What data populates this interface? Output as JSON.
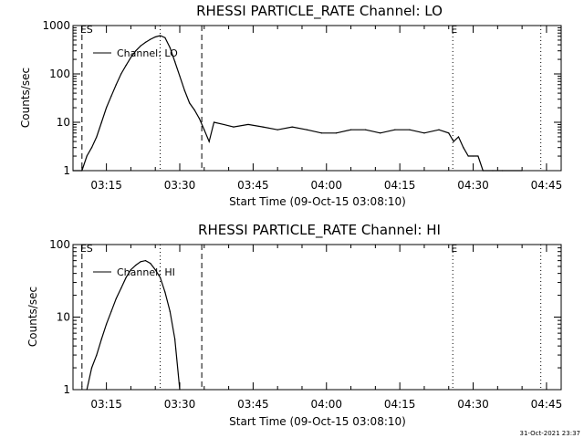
{
  "footer": {
    "timestamp": "31-Oct-2021 23:37"
  },
  "chart_data": [
    {
      "type": "line",
      "title": "RHESSI PARTICLE_RATE Channel: LO",
      "xlabel": "Start Time (09-Oct-15 03:08:10)",
      "ylabel": "Counts/sec",
      "yscale": "log",
      "xlim": [
        "03:08:10",
        "04:48:00"
      ],
      "ylim": [
        1,
        1000
      ],
      "x_ticks": [
        "03:15",
        "03:30",
        "03:45",
        "04:00",
        "04:15",
        "04:30",
        "04:45"
      ],
      "y_ticks": [
        "1",
        "10",
        "100",
        "1000"
      ],
      "legend": "top-left",
      "series": [
        {
          "name": "Channel: LO",
          "color": "#000000",
          "points": [
            [
              "03:08:10",
              1
            ],
            [
              "03:10:00",
              1
            ],
            [
              "03:11:00",
              2
            ],
            [
              "03:12:00",
              3
            ],
            [
              "03:13:00",
              5
            ],
            [
              "03:14:00",
              10
            ],
            [
              "03:15:00",
              20
            ],
            [
              "03:16:00",
              35
            ],
            [
              "03:17:00",
              60
            ],
            [
              "03:18:00",
              100
            ],
            [
              "03:19:00",
              150
            ],
            [
              "03:20:00",
              220
            ],
            [
              "03:21:00",
              300
            ],
            [
              "03:22:00",
              380
            ],
            [
              "03:23:00",
              450
            ],
            [
              "03:24:00",
              520
            ],
            [
              "03:25:00",
              580
            ],
            [
              "03:26:00",
              620
            ],
            [
              "03:27:00",
              560
            ],
            [
              "03:28:00",
              350
            ],
            [
              "03:29:00",
              180
            ],
            [
              "03:30:00",
              90
            ],
            [
              "03:31:00",
              45
            ],
            [
              "03:32:00",
              25
            ],
            [
              "03:33:00",
              18
            ],
            [
              "03:34:00",
              12
            ],
            [
              "03:35:00",
              7
            ],
            [
              "03:36:00",
              4
            ],
            [
              "03:37:00",
              10
            ],
            [
              "03:39:00",
              9
            ],
            [
              "03:41:00",
              8
            ],
            [
              "03:44:00",
              9
            ],
            [
              "03:47:00",
              8
            ],
            [
              "03:50:00",
              7
            ],
            [
              "03:53:00",
              8
            ],
            [
              "03:56:00",
              7
            ],
            [
              "03:59:00",
              6
            ],
            [
              "04:02:00",
              6
            ],
            [
              "04:05:00",
              7
            ],
            [
              "04:08:00",
              7
            ],
            [
              "04:11:00",
              6
            ],
            [
              "04:14:00",
              7
            ],
            [
              "04:17:00",
              7
            ],
            [
              "04:20:00",
              6
            ],
            [
              "04:23:00",
              7
            ],
            [
              "04:25:00",
              6
            ],
            [
              "04:26:00",
              4
            ],
            [
              "04:27:00",
              5
            ],
            [
              "04:28:00",
              3
            ],
            [
              "04:29:00",
              2
            ],
            [
              "04:30:00",
              2
            ],
            [
              "04:31:00",
              2
            ],
            [
              "04:32:00",
              1
            ],
            [
              "04:34:00",
              1
            ],
            [
              "04:36:00",
              1
            ],
            [
              "04:40:00",
              1
            ]
          ]
        }
      ],
      "markers": [
        {
          "time": "03:10:00",
          "label": "ES",
          "style": "dashed"
        },
        {
          "time": "03:26:00",
          "label": "",
          "style": "dotted"
        },
        {
          "time": "03:34:30",
          "label": "",
          "style": "dashed"
        },
        {
          "time": "04:25:50",
          "label": "E",
          "style": "dotted"
        },
        {
          "time": "04:43:50",
          "label": "",
          "style": "dotted"
        }
      ]
    },
    {
      "type": "line",
      "title": "RHESSI PARTICLE_RATE Channel: HI",
      "xlabel": "Start Time (09-Oct-15 03:08:10)",
      "ylabel": "Counts/sec",
      "yscale": "log",
      "xlim": [
        "03:08:10",
        "04:48:00"
      ],
      "ylim": [
        1,
        100
      ],
      "x_ticks": [
        "03:15",
        "03:30",
        "03:45",
        "04:00",
        "04:15",
        "04:30",
        "04:45"
      ],
      "y_ticks": [
        "1",
        "10",
        "100"
      ],
      "legend": "top-left",
      "series": [
        {
          "name": "Channel: HI",
          "color": "#000000",
          "points": [
            [
              "03:11:00",
              1
            ],
            [
              "03:12:00",
              2
            ],
            [
              "03:13:00",
              3
            ],
            [
              "03:14:00",
              5
            ],
            [
              "03:15:00",
              8
            ],
            [
              "03:16:00",
              12
            ],
            [
              "03:17:00",
              18
            ],
            [
              "03:18:00",
              25
            ],
            [
              "03:19:00",
              35
            ],
            [
              "03:20:00",
              45
            ],
            [
              "03:21:00",
              52
            ],
            [
              "03:22:00",
              58
            ],
            [
              "03:23:00",
              60
            ],
            [
              "03:24:00",
              55
            ],
            [
              "03:25:00",
              45
            ],
            [
              "03:26:00",
              35
            ],
            [
              "03:27:00",
              22
            ],
            [
              "03:28:00",
              12
            ],
            [
              "03:29:00",
              5
            ],
            [
              "03:30:00",
              1
            ]
          ]
        }
      ],
      "markers": [
        {
          "time": "03:10:00",
          "label": "ES",
          "style": "dashed"
        },
        {
          "time": "03:26:00",
          "label": "",
          "style": "dotted"
        },
        {
          "time": "03:34:30",
          "label": "",
          "style": "dashed"
        },
        {
          "time": "04:25:50",
          "label": "E",
          "style": "dotted"
        },
        {
          "time": "04:43:50",
          "label": "",
          "style": "dotted"
        }
      ]
    }
  ]
}
